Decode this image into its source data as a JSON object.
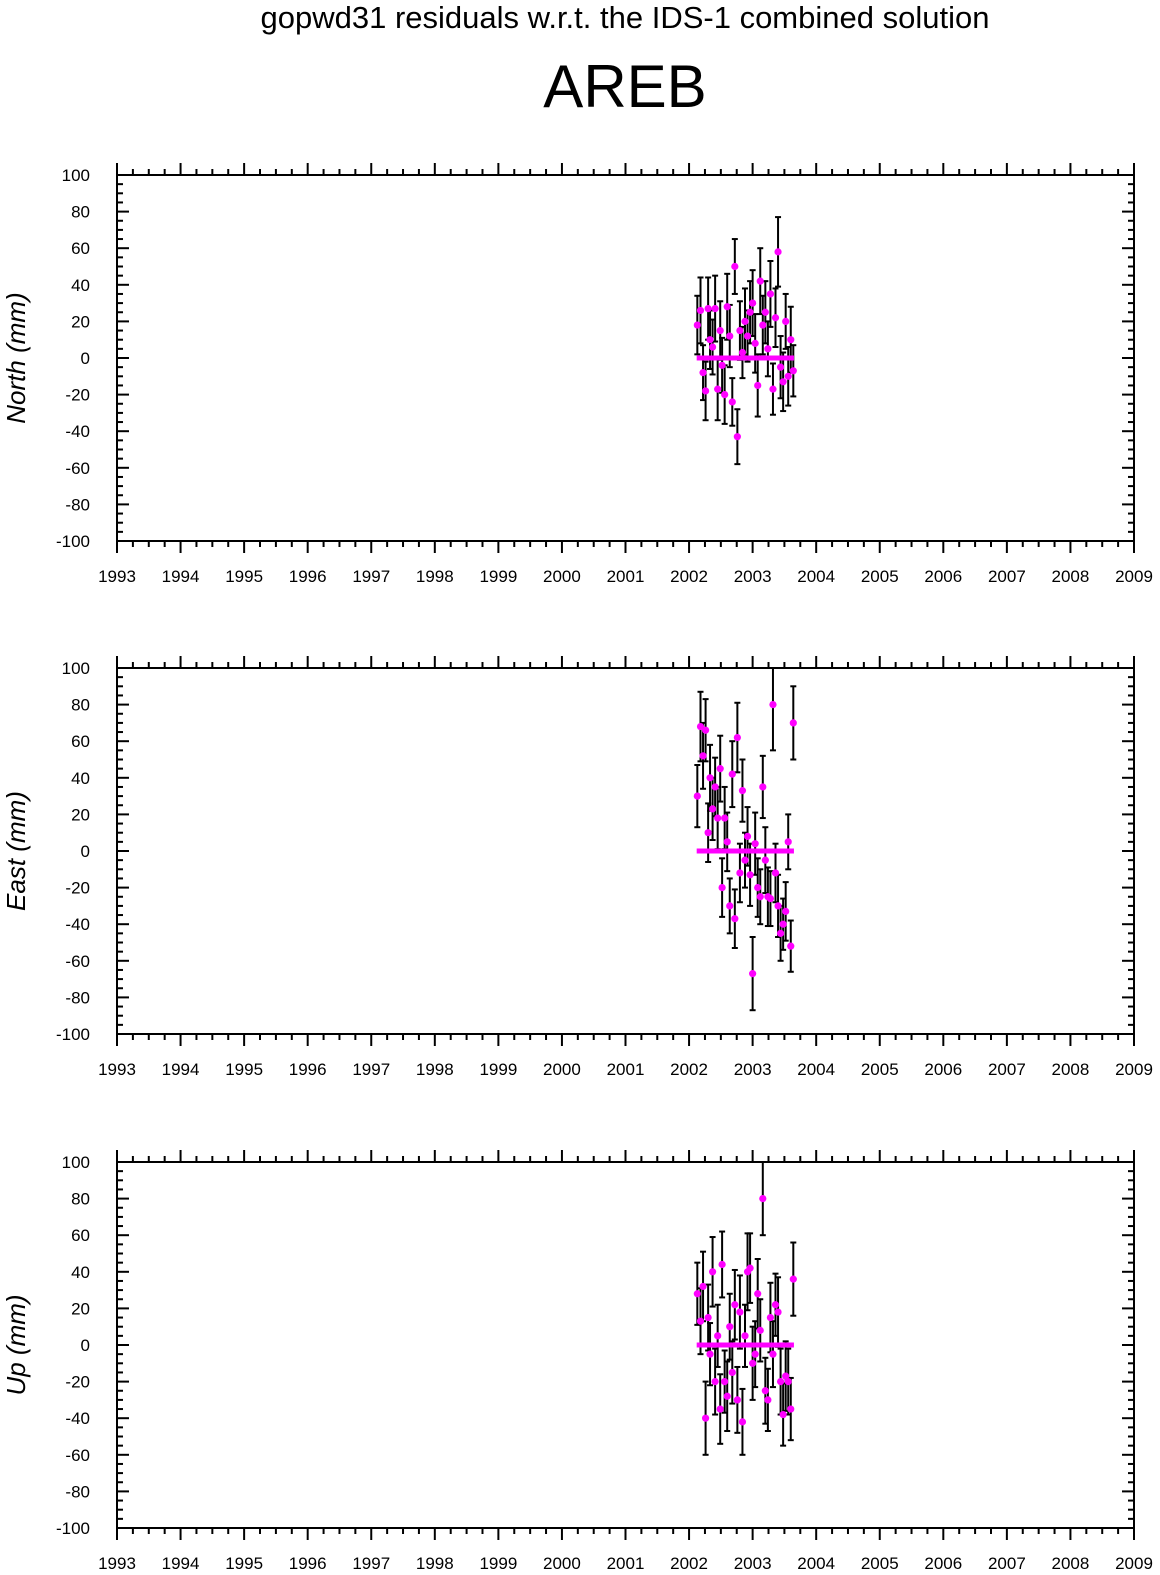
{
  "header": {
    "title": "gopwd31 residuals w.r.t. the IDS-1 combined solution",
    "station": "AREB"
  },
  "style": {
    "point_color": "#ff00ff",
    "errorbar_color": "#000000",
    "axis_color": "#000000"
  },
  "chart_data": [
    {
      "type": "scatter",
      "ylabel": "North (mm)",
      "xlim": [
        1993,
        2009
      ],
      "ylim": [
        -100,
        100
      ],
      "xticks": [
        "1993",
        "1994",
        "1995",
        "1996",
        "1997",
        "1998",
        "1999",
        "2000",
        "2001",
        "2002",
        "2003",
        "2004",
        "2005",
        "2006",
        "2007",
        "2008",
        "2009"
      ],
      "yticks": [
        "100",
        "80",
        "60",
        "40",
        "20",
        "0",
        "-20",
        "-40",
        "-60",
        "-80",
        "-100"
      ],
      "zero_line": [
        2002.12,
        2003.65
      ],
      "x": [
        2002.13,
        2002.18,
        2002.22,
        2002.26,
        2002.3,
        2002.33,
        2002.37,
        2002.41,
        2002.45,
        2002.49,
        2002.52,
        2002.56,
        2002.6,
        2002.64,
        2002.68,
        2002.72,
        2002.76,
        2002.8,
        2002.84,
        2002.88,
        2002.92,
        2002.96,
        2003.0,
        2003.04,
        2003.08,
        2003.12,
        2003.16,
        2003.2,
        2003.24,
        2003.28,
        2003.32,
        2003.36,
        2003.4,
        2003.44,
        2003.48,
        2003.52,
        2003.56,
        2003.6,
        2003.64
      ],
      "y": [
        18,
        26,
        -8,
        -18,
        27,
        10,
        6,
        27,
        -17,
        15,
        -4,
        -20,
        28,
        12,
        -24,
        50,
        -43,
        15,
        3,
        20,
        12,
        25,
        30,
        8,
        -15,
        42,
        18,
        25,
        5,
        35,
        -17,
        22,
        58,
        -5,
        -13,
        20,
        -10,
        10,
        -7
      ],
      "err": [
        16,
        18,
        15,
        16,
        17,
        16,
        15,
        18,
        17,
        16,
        15,
        16,
        18,
        17,
        13,
        15,
        15,
        16,
        14,
        18,
        14,
        17,
        18,
        16,
        17,
        18,
        16,
        17,
        15,
        18,
        14,
        16,
        19,
        17,
        16,
        15,
        16,
        18,
        14
      ]
    },
    {
      "type": "scatter",
      "ylabel": "East (mm)",
      "xlim": [
        1993,
        2009
      ],
      "ylim": [
        -100,
        100
      ],
      "xticks": [
        "1993",
        "1994",
        "1995",
        "1996",
        "1997",
        "1998",
        "1999",
        "2000",
        "2001",
        "2002",
        "2003",
        "2004",
        "2005",
        "2006",
        "2007",
        "2008",
        "2009"
      ],
      "yticks": [
        "100",
        "80",
        "60",
        "40",
        "20",
        "0",
        "-20",
        "-40",
        "-60",
        "-80",
        "-100"
      ],
      "zero_line": [
        2002.12,
        2003.65
      ],
      "x": [
        2002.13,
        2002.18,
        2002.22,
        2002.26,
        2002.3,
        2002.33,
        2002.37,
        2002.41,
        2002.45,
        2002.49,
        2002.52,
        2002.56,
        2002.6,
        2002.64,
        2002.68,
        2002.72,
        2002.76,
        2002.8,
        2002.84,
        2002.88,
        2002.92,
        2002.96,
        2003.0,
        2003.04,
        2003.08,
        2003.12,
        2003.16,
        2003.2,
        2003.24,
        2003.28,
        2003.32,
        2003.36,
        2003.4,
        2003.44,
        2003.48,
        2003.52,
        2003.56,
        2003.6,
        2003.64
      ],
      "y": [
        30,
        68,
        52,
        66,
        10,
        40,
        23,
        35,
        18,
        45,
        -20,
        18,
        5,
        -30,
        42,
        -37,
        62,
        -12,
        33,
        -5,
        8,
        -13,
        -67,
        4,
        -20,
        -25,
        35,
        -5,
        -25,
        -26,
        80,
        -12,
        -30,
        -45,
        -40,
        -33,
        5,
        -52,
        70
      ],
      "err": [
        17,
        19,
        18,
        17,
        16,
        18,
        17,
        16,
        17,
        18,
        16,
        17,
        16,
        15,
        18,
        16,
        19,
        16,
        17,
        15,
        16,
        17,
        20,
        17,
        16,
        15,
        17,
        18,
        16,
        15,
        25,
        16,
        17,
        15,
        14,
        16,
        15,
        14,
        20
      ]
    },
    {
      "type": "scatter",
      "ylabel": "Up (mm)",
      "xlim": [
        1993,
        2009
      ],
      "ylim": [
        -100,
        100
      ],
      "xticks": [
        "1993",
        "1994",
        "1995",
        "1996",
        "1997",
        "1998",
        "1999",
        "2000",
        "2001",
        "2002",
        "2003",
        "2004",
        "2005",
        "2006",
        "2007",
        "2008",
        "2009"
      ],
      "yticks": [
        "100",
        "80",
        "60",
        "40",
        "20",
        "0",
        "-20",
        "-40",
        "-60",
        "-80",
        "-100"
      ],
      "zero_line": [
        2002.12,
        2003.65
      ],
      "x": [
        2002.13,
        2002.18,
        2002.22,
        2002.26,
        2002.3,
        2002.33,
        2002.37,
        2002.41,
        2002.45,
        2002.49,
        2002.52,
        2002.56,
        2002.6,
        2002.64,
        2002.68,
        2002.72,
        2002.76,
        2002.8,
        2002.84,
        2002.88,
        2002.92,
        2002.96,
        2003.0,
        2003.04,
        2003.08,
        2003.12,
        2003.16,
        2003.2,
        2003.24,
        2003.28,
        2003.32,
        2003.36,
        2003.4,
        2003.44,
        2003.48,
        2003.52,
        2003.56,
        2003.6,
        2003.64
      ],
      "y": [
        28,
        13,
        32,
        -40,
        15,
        -5,
        40,
        -20,
        5,
        -35,
        44,
        -20,
        -28,
        10,
        -15,
        22,
        -30,
        18,
        -42,
        5,
        40,
        42,
        -10,
        -5,
        28,
        8,
        80,
        -25,
        -30,
        15,
        -5,
        22,
        18,
        -20,
        -38,
        -17,
        -20,
        -35,
        36
      ],
      "err": [
        17,
        18,
        19,
        20,
        18,
        17,
        19,
        18,
        17,
        19,
        18,
        17,
        19,
        18,
        17,
        19,
        18,
        20,
        18,
        17,
        21,
        19,
        20,
        18,
        19,
        17,
        20,
        18,
        17,
        19,
        18,
        17,
        19,
        18,
        17,
        19,
        18,
        17,
        20
      ]
    }
  ]
}
